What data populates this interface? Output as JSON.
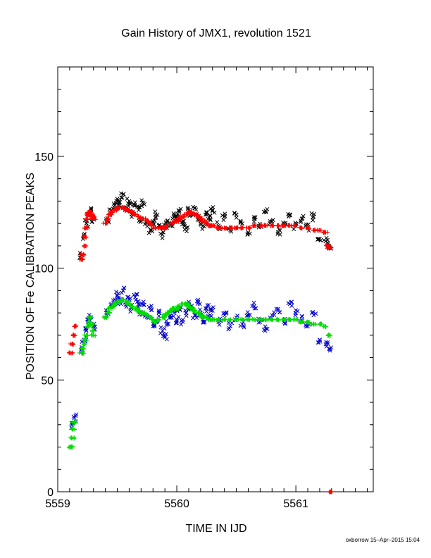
{
  "chart_data": {
    "type": "scatter",
    "title": "Gain History of JMX1, revolution 1521",
    "xlabel": "TIME IN IJD",
    "ylabel": "POSITION OF Fe CALIBRATION PEAKS",
    "xlim": [
      5559.0,
      5561.65
    ],
    "ylim": [
      0,
      190
    ],
    "xticks": [
      "5559",
      "5560",
      "5561"
    ],
    "yticks": [
      "0",
      "50",
      "100",
      "150"
    ],
    "xtick_values": [
      5559,
      5560,
      5561
    ],
    "ytick_values": [
      0,
      50,
      100,
      150
    ],
    "grid": false,
    "series": [
      {
        "color": "#000000",
        "marker": "x",
        "x": [
          5559.2,
          5559.22,
          5559.24,
          5559.26,
          5559.28,
          5559.3,
          5559.42,
          5559.45,
          5559.48,
          5559.5,
          5559.52,
          5559.55,
          5559.58,
          5559.6,
          5559.62,
          5559.65,
          5559.68,
          5559.7,
          5559.72,
          5559.75,
          5559.78,
          5559.8,
          5559.82,
          5559.85,
          5559.88,
          5559.9,
          5559.92,
          5559.95,
          5559.98,
          5560.0,
          5560.02,
          5560.05,
          5560.08,
          5560.1,
          5560.12,
          5560.15,
          5560.18,
          5560.2,
          5560.22,
          5560.25,
          5560.28,
          5560.3,
          5560.35,
          5560.4,
          5560.45,
          5560.5,
          5560.55,
          5560.6,
          5560.65,
          5560.7,
          5560.75,
          5560.8,
          5560.85,
          5560.9,
          5560.95,
          5561.0,
          5561.05,
          5561.1,
          5561.15,
          5561.2,
          5561.25,
          5561.28
        ],
        "y": [
          106,
          114,
          120,
          124,
          126,
          122,
          121,
          126,
          128,
          131,
          128,
          133,
          127,
          130,
          124,
          128,
          126,
          122,
          129,
          120,
          117,
          121,
          124,
          119,
          115,
          118,
          121,
          119,
          123,
          122,
          125,
          121,
          118,
          126,
          124,
          127,
          123,
          121,
          119,
          124,
          122,
          126,
          119,
          123,
          117,
          124,
          120,
          116,
          122,
          119,
          125,
          121,
          116,
          120,
          124,
          119,
          122,
          118,
          123,
          113,
          112,
          110
        ],
        "scatter": 5
      },
      {
        "color": "#0000cc",
        "marker": "x",
        "x": [
          5559.12,
          5559.14,
          5559.2,
          5559.22,
          5559.24,
          5559.26,
          5559.28,
          5559.3,
          5559.42,
          5559.45,
          5559.48,
          5559.5,
          5559.52,
          5559.55,
          5559.58,
          5559.6,
          5559.62,
          5559.65,
          5559.68,
          5559.7,
          5559.72,
          5559.75,
          5559.78,
          5559.8,
          5559.82,
          5559.85,
          5559.88,
          5559.9,
          5559.92,
          5559.95,
          5559.98,
          5560.0,
          5560.02,
          5560.05,
          5560.08,
          5560.1,
          5560.12,
          5560.15,
          5560.18,
          5560.2,
          5560.22,
          5560.25,
          5560.28,
          5560.3,
          5560.35,
          5560.4,
          5560.45,
          5560.5,
          5560.55,
          5560.6,
          5560.65,
          5560.7,
          5560.75,
          5560.8,
          5560.85,
          5560.9,
          5560.95,
          5561.0,
          5561.05,
          5561.1,
          5561.15,
          5561.2,
          5561.25,
          5561.28
        ],
        "y": [
          30,
          33,
          64,
          68,
          72,
          76,
          78,
          74,
          80,
          84,
          86,
          88,
          85,
          90,
          84,
          86,
          82,
          87,
          84,
          80,
          85,
          78,
          82,
          74,
          76,
          80,
          72,
          69,
          75,
          78,
          80,
          77,
          82,
          76,
          80,
          84,
          82,
          79,
          85,
          80,
          77,
          82,
          79,
          81,
          76,
          80,
          74,
          78,
          75,
          79,
          83,
          76,
          73,
          79,
          81,
          76,
          84,
          80,
          77,
          74,
          79,
          68,
          66,
          64
        ],
        "scatter": 5
      },
      {
        "color": "#ff0000",
        "marker": "+",
        "x": [
          5559.11,
          5559.12,
          5559.13,
          5559.14,
          5559.2,
          5559.21,
          5559.22,
          5559.23,
          5559.24,
          5559.25,
          5559.26,
          5559.27,
          5559.28,
          5559.29,
          5559.3,
          5559.4,
          5559.42,
          5559.44,
          5559.46,
          5559.48,
          5559.5,
          5559.52,
          5559.55,
          5559.58,
          5559.6,
          5559.62,
          5559.65,
          5559.68,
          5559.7,
          5559.72,
          5559.75,
          5559.78,
          5559.8,
          5559.82,
          5559.85,
          5559.88,
          5559.9,
          5559.92,
          5559.95,
          5559.98,
          5560.0,
          5560.02,
          5560.05,
          5560.08,
          5560.1,
          5560.12,
          5560.15,
          5560.18,
          5560.2,
          5560.22,
          5560.25,
          5560.28,
          5560.3,
          5560.35,
          5560.4,
          5560.45,
          5560.5,
          5560.55,
          5560.6,
          5560.65,
          5560.7,
          5560.75,
          5560.8,
          5560.85,
          5560.9,
          5560.95,
          5561.0,
          5561.05,
          5561.1,
          5561.15,
          5561.2,
          5561.25,
          5561.27,
          5561.28,
          5561.3
        ],
        "y": [
          62,
          66,
          70,
          74,
          104,
          106,
          110,
          114,
          118,
          122,
          124,
          125,
          124,
          123,
          122,
          120,
          122,
          124,
          125,
          126,
          127,
          127,
          127,
          126,
          126,
          125,
          124,
          123,
          122,
          122,
          121,
          120,
          119,
          118,
          118,
          118,
          118,
          119,
          120,
          121,
          121,
          122,
          123,
          124,
          125,
          125,
          124,
          123,
          122,
          121,
          120,
          119,
          119,
          118,
          118,
          118,
          118,
          118,
          118,
          119,
          119,
          119,
          119,
          119,
          119,
          119,
          119,
          118,
          118,
          117,
          117,
          116,
          110,
          109,
          0
        ],
        "scatter": 0
      },
      {
        "color": "#00dd00",
        "marker": "+",
        "x": [
          5559.11,
          5559.12,
          5559.13,
          5559.14,
          5559.2,
          5559.21,
          5559.22,
          5559.23,
          5559.24,
          5559.25,
          5559.26,
          5559.27,
          5559.28,
          5559.29,
          5559.3,
          5559.4,
          5559.42,
          5559.44,
          5559.46,
          5559.48,
          5559.5,
          5559.52,
          5559.55,
          5559.58,
          5559.6,
          5559.62,
          5559.65,
          5559.68,
          5559.7,
          5559.72,
          5559.75,
          5559.78,
          5559.8,
          5559.82,
          5559.85,
          5559.88,
          5559.9,
          5559.92,
          5559.95,
          5559.98,
          5560.0,
          5560.02,
          5560.05,
          5560.08,
          5560.1,
          5560.12,
          5560.15,
          5560.18,
          5560.2,
          5560.22,
          5560.25,
          5560.28,
          5560.3,
          5560.35,
          5560.4,
          5560.45,
          5560.5,
          5560.55,
          5560.6,
          5560.65,
          5560.7,
          5560.75,
          5560.8,
          5560.85,
          5560.9,
          5560.95,
          5561.0,
          5561.05,
          5561.1,
          5561.15,
          5561.2,
          5561.25,
          5561.28
        ],
        "y": [
          20,
          24,
          28,
          31,
          62,
          64,
          66,
          68,
          70,
          74,
          76,
          78,
          75,
          72,
          70,
          78,
          80,
          82,
          83,
          84,
          85,
          85,
          86,
          85,
          84,
          83,
          82,
          81,
          80,
          80,
          79,
          78,
          77,
          76,
          77,
          78,
          79,
          80,
          81,
          82,
          82,
          83,
          84,
          84,
          83,
          82,
          81,
          80,
          79,
          78,
          78,
          77,
          77,
          77,
          77,
          77,
          77,
          77,
          77,
          77,
          77,
          77,
          77,
          77,
          77,
          77,
          77,
          76,
          76,
          75,
          75,
          74,
          70
        ],
        "scatter": 0
      }
    ]
  },
  "footer": {
    "credit": "oxborrow 15–Apr–2015 15:04"
  }
}
